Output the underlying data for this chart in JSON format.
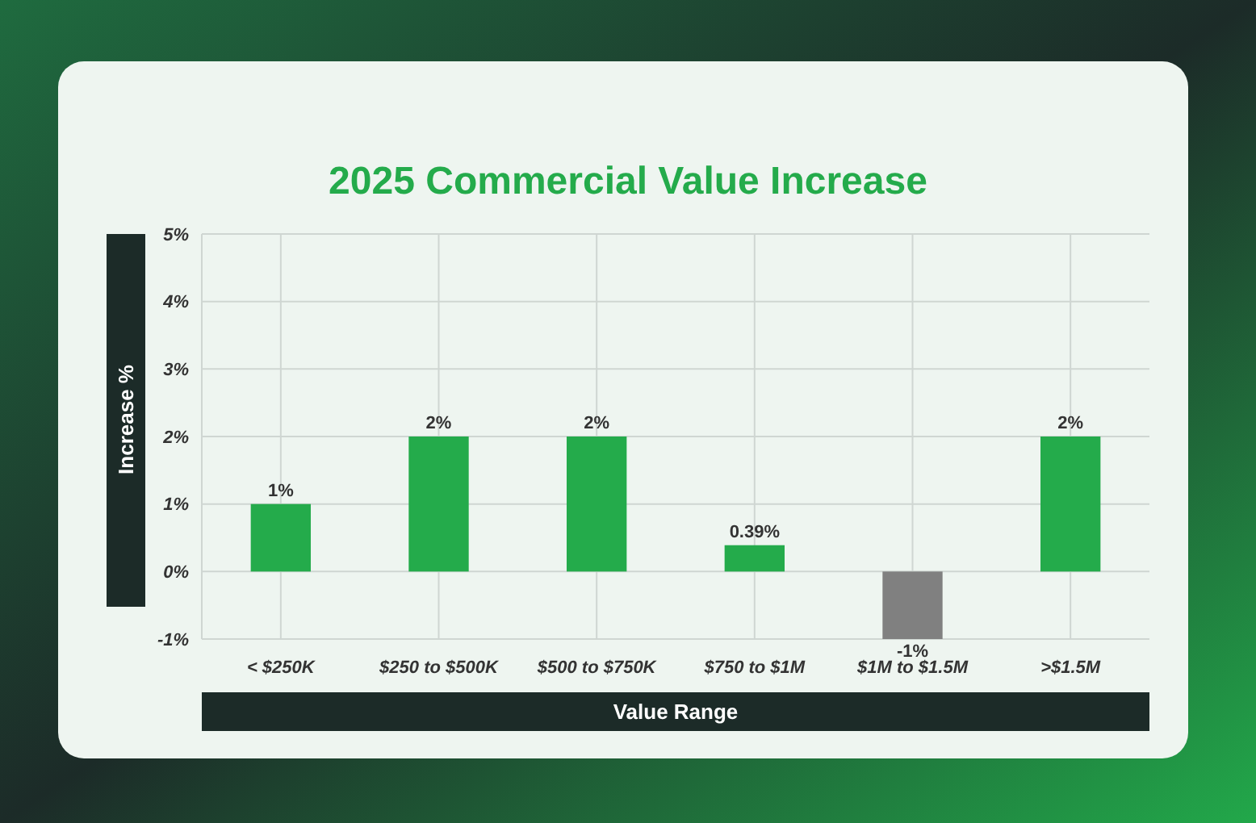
{
  "chart_data": {
    "type": "bar",
    "title": "2025 Commercial Value Increase",
    "xlabel": "Value Range",
    "ylabel": "Increase %",
    "categories": [
      "< $250K",
      "$250 to $500K",
      "$500 to $750K",
      "$750 to $1M",
      "$1M to $1.5M",
      ">$1.5M"
    ],
    "values": [
      1,
      2,
      2,
      0.39,
      -1,
      2
    ],
    "colors": [
      "#24ab4b",
      "#24ab4b",
      "#24ab4b",
      "#24ab4b",
      "#808080",
      "#24ab4b"
    ],
    "value_labels": [
      "1%",
      "2%",
      "2%",
      "0.39%",
      "-1%",
      "2%"
    ],
    "ylim": [
      -1,
      5
    ],
    "yticks": [
      {
        "value": -1,
        "label": "-1%"
      },
      {
        "value": 0,
        "label": "0%"
      },
      {
        "value": 1,
        "label": "1%"
      },
      {
        "value": 2,
        "label": "2%"
      },
      {
        "value": 3,
        "label": "3%"
      },
      {
        "value": 4,
        "label": "4%"
      },
      {
        "value": 5,
        "label": "5%"
      }
    ],
    "grid": true
  }
}
